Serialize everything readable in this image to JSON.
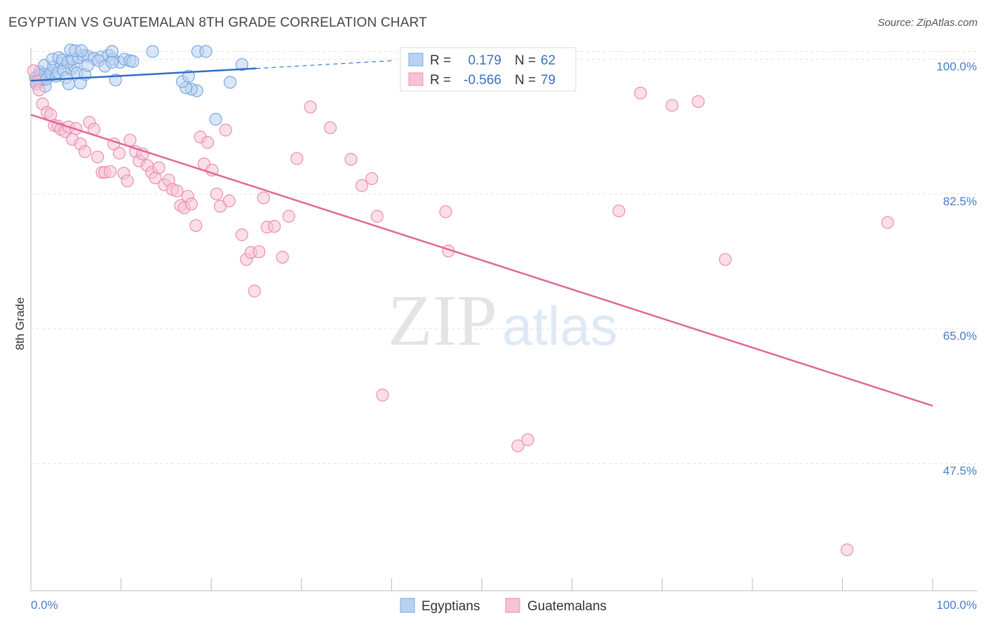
{
  "title": "EGYPTIAN VS GUATEMALAN 8TH GRADE CORRELATION CHART",
  "source": "Source: ZipAtlas.com",
  "watermark": {
    "zip": "ZIP",
    "atlas": "atlas"
  },
  "colors": {
    "blue": "#7aa8e0",
    "blue_fill": "#b9d2f1",
    "blue_line": "#2f6fc4",
    "pink": "#ec8fb0",
    "pink_fill": "#f6c3d6",
    "pink_line": "#e0679a",
    "tick": "#4a7cc7",
    "grid": "#e3e3e3"
  },
  "chart_data": {
    "type": "scatter",
    "title": "EGYPTIAN VS GUATEMALAN 8TH GRADE CORRELATION CHART",
    "xlabel": "",
    "ylabel": "8th Grade",
    "xlim": [
      0,
      100
    ],
    "ylim": [
      31,
      101.5
    ],
    "x_ticks": [
      {
        "value": 0,
        "label": "0.0%"
      },
      {
        "value": 100,
        "label": "100.0%"
      }
    ],
    "y_ticks": [
      {
        "value": 100.0,
        "label": "100.0%"
      },
      {
        "value": 82.5,
        "label": "82.5%"
      },
      {
        "value": 65.0,
        "label": "65.0%"
      },
      {
        "value": 47.5,
        "label": "47.5%"
      }
    ],
    "legend": {
      "position": "bottom-center",
      "entries": [
        "Egyptians",
        "Guatemalans"
      ]
    },
    "stats": [
      {
        "r_label": "R =",
        "r_value": "0.179",
        "n_label": "N =",
        "n_value": "62"
      },
      {
        "r_label": "R =",
        "r_value": "-0.566",
        "n_label": "N =",
        "n_value": "79"
      }
    ],
    "series": [
      {
        "name": "Egyptians",
        "color": "#7aa8e0",
        "trend": {
          "x0": 0,
          "y0": 97.2,
          "x1": 25,
          "y1": 98.8,
          "dash_x1": 40,
          "dash_y1": 99.8
        },
        "points": [
          [
            0.5,
            97.6
          ],
          [
            0.8,
            97.9
          ],
          [
            1.0,
            98.4
          ],
          [
            1.2,
            98.1
          ],
          [
            1.4,
            97.5
          ],
          [
            1.6,
            96.5
          ],
          [
            1.8,
            98.0
          ],
          [
            2.0,
            97.8
          ],
          [
            0.6,
            96.8
          ],
          [
            0.9,
            97.2
          ],
          [
            1.1,
            98.0
          ],
          [
            1.5,
            99.2
          ],
          [
            1.7,
            97.4
          ],
          [
            2.2,
            98.2
          ],
          [
            2.5,
            99.0
          ],
          [
            2.8,
            97.8
          ],
          [
            3.0,
            98.3
          ],
          [
            3.3,
            99.5
          ],
          [
            3.6,
            98.6
          ],
          [
            3.9,
            97.6
          ],
          [
            4.2,
            96.8
          ],
          [
            4.5,
            98.7
          ],
          [
            4.8,
            99.1
          ],
          [
            5.1,
            98.2
          ],
          [
            2.4,
            100.0
          ],
          [
            3.1,
            100.2
          ],
          [
            3.5,
            99.9
          ],
          [
            4.1,
            99.6
          ],
          [
            4.6,
            100.0
          ],
          [
            5.3,
            100.2
          ],
          [
            5.8,
            100.5
          ],
          [
            6.3,
            100.4
          ],
          [
            7.0,
            100.1
          ],
          [
            7.8,
            100.3
          ],
          [
            8.6,
            100.5
          ],
          [
            9.1,
            100.0
          ],
          [
            9.9,
            99.6
          ],
          [
            10.4,
            100.0
          ],
          [
            4.4,
            101.2
          ],
          [
            4.9,
            101.1
          ],
          [
            5.6,
            101.1
          ],
          [
            9.0,
            101.0
          ],
          [
            13.5,
            101.0
          ],
          [
            18.5,
            101.0
          ],
          [
            19.4,
            101.0
          ],
          [
            6.0,
            98.0
          ],
          [
            6.3,
            99.2
          ],
          [
            5.5,
            96.9
          ],
          [
            7.5,
            99.8
          ],
          [
            8.2,
            99.1
          ],
          [
            9.4,
            97.3
          ],
          [
            9.0,
            99.6
          ],
          [
            11.0,
            99.8
          ],
          [
            11.3,
            99.7
          ],
          [
            18.4,
            95.9
          ],
          [
            17.8,
            96.1
          ],
          [
            17.2,
            96.3
          ],
          [
            16.8,
            97.1
          ],
          [
            17.5,
            97.8
          ],
          [
            23.4,
            99.3
          ],
          [
            22.1,
            97.0
          ],
          [
            20.5,
            92.2
          ]
        ]
      },
      {
        "name": "Guatemalans",
        "color": "#ec8fb0",
        "trend": {
          "x0": 0,
          "y0": 92.8,
          "x1": 100,
          "y1": 55.0
        },
        "points": [
          [
            0.3,
            98.5
          ],
          [
            0.6,
            97.1
          ],
          [
            0.9,
            96.0
          ],
          [
            1.3,
            94.2
          ],
          [
            1.8,
            93.1
          ],
          [
            2.2,
            92.8
          ],
          [
            2.6,
            91.4
          ],
          [
            3.0,
            91.3
          ],
          [
            3.3,
            90.9
          ],
          [
            3.8,
            90.6
          ],
          [
            4.2,
            91.2
          ],
          [
            4.6,
            89.6
          ],
          [
            5.0,
            91.0
          ],
          [
            5.5,
            89.0
          ],
          [
            6.0,
            88.0
          ],
          [
            6.5,
            91.8
          ],
          [
            7.0,
            90.9
          ],
          [
            7.4,
            87.3
          ],
          [
            7.9,
            85.3
          ],
          [
            8.2,
            85.3
          ],
          [
            8.8,
            85.4
          ],
          [
            9.2,
            89.0
          ],
          [
            9.8,
            87.8
          ],
          [
            10.3,
            85.2
          ],
          [
            10.7,
            84.2
          ],
          [
            11.0,
            89.5
          ],
          [
            11.6,
            88.0
          ],
          [
            12.0,
            86.8
          ],
          [
            12.4,
            87.7
          ],
          [
            12.9,
            86.2
          ],
          [
            13.4,
            85.3
          ],
          [
            13.8,
            84.6
          ],
          [
            14.2,
            85.9
          ],
          [
            14.8,
            83.7
          ],
          [
            15.3,
            84.3
          ],
          [
            15.7,
            83.1
          ],
          [
            16.2,
            82.9
          ],
          [
            16.6,
            81.0
          ],
          [
            17.0,
            80.7
          ],
          [
            17.4,
            82.2
          ],
          [
            17.8,
            81.2
          ],
          [
            18.3,
            78.4
          ],
          [
            18.8,
            89.9
          ],
          [
            19.2,
            86.4
          ],
          [
            19.6,
            89.2
          ],
          [
            20.1,
            85.6
          ],
          [
            20.6,
            82.5
          ],
          [
            21.0,
            80.9
          ],
          [
            21.6,
            90.8
          ],
          [
            22.0,
            81.6
          ],
          [
            23.4,
            77.2
          ],
          [
            23.9,
            74.0
          ],
          [
            24.4,
            74.9
          ],
          [
            24.8,
            69.9
          ],
          [
            25.3,
            75.0
          ],
          [
            25.8,
            82.0
          ],
          [
            26.2,
            78.2
          ],
          [
            27.0,
            78.3
          ],
          [
            27.9,
            74.3
          ],
          [
            28.6,
            79.6
          ],
          [
            29.5,
            87.1
          ],
          [
            31.0,
            93.8
          ],
          [
            33.2,
            91.1
          ],
          [
            35.5,
            87.0
          ],
          [
            36.7,
            83.6
          ],
          [
            37.8,
            84.5
          ],
          [
            38.4,
            79.6
          ],
          [
            39.0,
            56.4
          ],
          [
            46.0,
            80.2
          ],
          [
            46.3,
            75.1
          ],
          [
            54.0,
            49.8
          ],
          [
            55.1,
            50.6
          ],
          [
            65.2,
            80.3
          ],
          [
            67.6,
            95.6
          ],
          [
            71.1,
            94.0
          ],
          [
            74.0,
            94.5
          ],
          [
            77.0,
            74.0
          ],
          [
            90.5,
            36.3
          ],
          [
            95.0,
            78.8
          ]
        ]
      }
    ]
  }
}
